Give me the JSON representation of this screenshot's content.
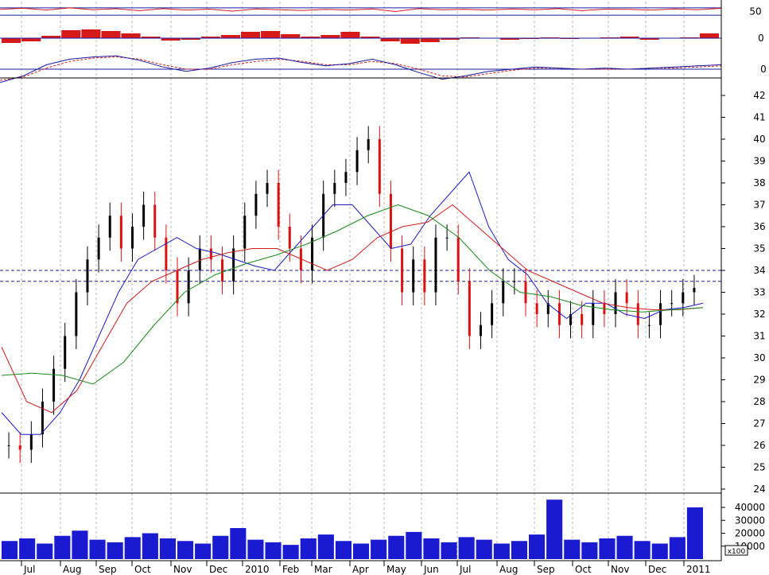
{
  "chart_data": [
    {
      "type": "line",
      "panel": "rsi",
      "title": "",
      "ylabel": "",
      "ylim": [
        0,
        100
      ],
      "yticks": [
        50
      ],
      "reference_lines": [
        30,
        70
      ],
      "series": [
        {
          "values": [
            62,
            68,
            58,
            70,
            60,
            65,
            55,
            66,
            58,
            63,
            52,
            64,
            60,
            56,
            62,
            58,
            64,
            50,
            66,
            60,
            62,
            58,
            64,
            60,
            66,
            55,
            63,
            62,
            58,
            64,
            60,
            68
          ]
        }
      ],
      "colors": {
        "line": "#d61a1a",
        "ref": "#1a1aa0"
      }
    },
    {
      "type": "bar",
      "panel": "macd-histogram",
      "title": "",
      "ylabel": "",
      "yticks": [
        0
      ],
      "values": [
        -0.6,
        -0.4,
        0.3,
        1.0,
        1.1,
        0.9,
        0.6,
        0.2,
        -0.3,
        -0.2,
        0.2,
        0.4,
        0.8,
        0.9,
        0.5,
        0.2,
        0.4,
        0.8,
        0.2,
        -0.4,
        -0.7,
        -0.5,
        -0.2,
        0.1,
        0.0,
        -0.2,
        -0.1,
        0.1,
        -0.1,
        0.0,
        0.1,
        0.2,
        -0.2,
        0.0,
        0.1,
        0.6
      ],
      "colors": {
        "bar": "#d61a1a",
        "zero": "#1a1aa0"
      }
    },
    {
      "type": "line",
      "panel": "macd",
      "title": "",
      "ylabel": "",
      "yticks": [
        0
      ],
      "series": [
        {
          "values": [
            -1.2,
            -0.6,
            0.4,
            0.9,
            1.1,
            1.2,
            0.8,
            0.2,
            -0.2,
            0.1,
            0.6,
            0.9,
            1.0,
            0.6,
            0.3,
            0.5,
            0.9,
            0.4,
            -0.3,
            -0.9,
            -0.6,
            -0.2,
            0.0,
            0.2,
            0.1,
            0.0,
            0.1,
            0.0,
            0.1,
            0.2,
            0.3,
            0.4
          ]
        },
        {
          "values": [
            -1.0,
            -0.7,
            0.1,
            0.7,
            1.0,
            1.1,
            0.9,
            0.4,
            0.0,
            0.0,
            0.4,
            0.7,
            0.9,
            0.7,
            0.4,
            0.4,
            0.7,
            0.5,
            0.0,
            -0.6,
            -0.7,
            -0.4,
            -0.1,
            0.1,
            0.1,
            0.0,
            0.0,
            0.0,
            0.1,
            0.1,
            0.2,
            0.3
          ]
        }
      ],
      "colors": {
        "macd": "#1a1aa0",
        "signal": "#d61a1a",
        "zero": "#1a1aa0"
      }
    },
    {
      "type": "candlestick",
      "panel": "price",
      "title": "",
      "xlabel": "",
      "ylabel": "",
      "ylim": [
        23.5,
        42.5
      ],
      "yticks": [
        24,
        25,
        26,
        27,
        28,
        29,
        30,
        31,
        32,
        33,
        34,
        35,
        36,
        37,
        38,
        39,
        40,
        41,
        42
      ],
      "x_ticks": [
        "Jul",
        "Aug",
        "Sep",
        "Oct",
        "Nov",
        "Dec",
        "2010",
        "Feb",
        "Mar",
        "Apr",
        "May",
        "Jun",
        "Jul",
        "Aug",
        "Sep",
        "Oct",
        "Nov",
        "Dec",
        "2011"
      ],
      "horizontal_levels": [
        34.0,
        33.5
      ],
      "close_series": [
        26.0,
        25.8,
        26.5,
        28.0,
        29.5,
        31.0,
        33.0,
        34.5,
        35.5,
        36.5,
        35.0,
        36.0,
        37.0,
        35.5,
        34.0,
        32.5,
        34.0,
        35.0,
        34.5,
        33.5,
        35.0,
        36.5,
        37.5,
        38.0,
        36.0,
        35.0,
        34.0,
        35.5,
        37.5,
        38.0,
        38.5,
        39.5,
        40.0,
        37.5,
        35.0,
        33.0,
        34.5,
        33.0,
        35.5,
        35.5,
        33.5,
        31.0,
        31.5,
        32.5,
        33.5,
        33.5,
        32.5,
        32.0,
        32.5,
        31.5,
        32.0,
        31.5,
        32.5,
        32.0,
        33.0,
        32.5,
        31.5,
        31.5,
        32.5,
        32.5,
        33.0,
        33.2
      ],
      "moving_averages": [
        {
          "values": [
            27.5,
            26.5,
            26.5,
            27.5,
            29.0,
            31.0,
            33.0,
            34.5,
            35.0,
            35.5,
            35.0,
            34.8,
            34.5,
            34.2,
            34.0,
            35.0,
            36.0,
            37.0,
            37.0,
            36.0,
            35.0,
            35.2,
            36.5,
            37.5,
            38.5,
            36.0,
            34.5,
            33.8,
            32.5,
            31.8,
            32.5,
            32.5,
            32.0,
            31.8,
            32.2,
            32.3,
            32.5
          ]
        },
        {
          "values": [
            30.5,
            28.0,
            27.5,
            28.5,
            30.5,
            32.5,
            33.5,
            34.0,
            34.5,
            34.8,
            35.0,
            35.0,
            34.5,
            34.0,
            34.5,
            35.5,
            36.0,
            36.2,
            37.0,
            36.0,
            35.0,
            34.0,
            33.5,
            33.0,
            32.5,
            32.3,
            32.2,
            32.2,
            32.3
          ]
        },
        {
          "values": [
            29.2,
            29.3,
            29.2,
            28.8,
            29.8,
            31.5,
            33.0,
            33.8,
            34.3,
            34.7,
            35.2,
            35.8,
            36.5,
            37.0,
            36.5,
            35.5,
            34.0,
            33.0,
            32.8,
            32.4,
            32.2,
            32.1,
            32.2,
            32.3
          ]
        }
      ],
      "colors": {
        "up": "#000000",
        "down": "#dd1111",
        "ma_blue": "#1a1ad0",
        "ma_red": "#d61a1a",
        "ma_green": "#1a8a1a",
        "levels": "#1a1aa0"
      }
    },
    {
      "type": "bar",
      "panel": "volume",
      "title": "",
      "ylabel": "",
      "ylim": [
        0,
        48000
      ],
      "yticks": [
        10000,
        20000,
        30000,
        40000
      ],
      "unit_label": "x100",
      "values": [
        14000,
        16000,
        12000,
        18000,
        22000,
        15000,
        13000,
        17000,
        20000,
        16000,
        14000,
        12000,
        18000,
        24000,
        15000,
        13000,
        11000,
        16000,
        19000,
        14000,
        12000,
        15000,
        18000,
        21000,
        16000,
        13000,
        17000,
        15000,
        12000,
        14000,
        19000,
        46000,
        15000,
        13000,
        16000,
        18000,
        14000,
        12000,
        17000,
        40000
      ],
      "colors": {
        "bar": "#1a1ad0"
      }
    }
  ]
}
